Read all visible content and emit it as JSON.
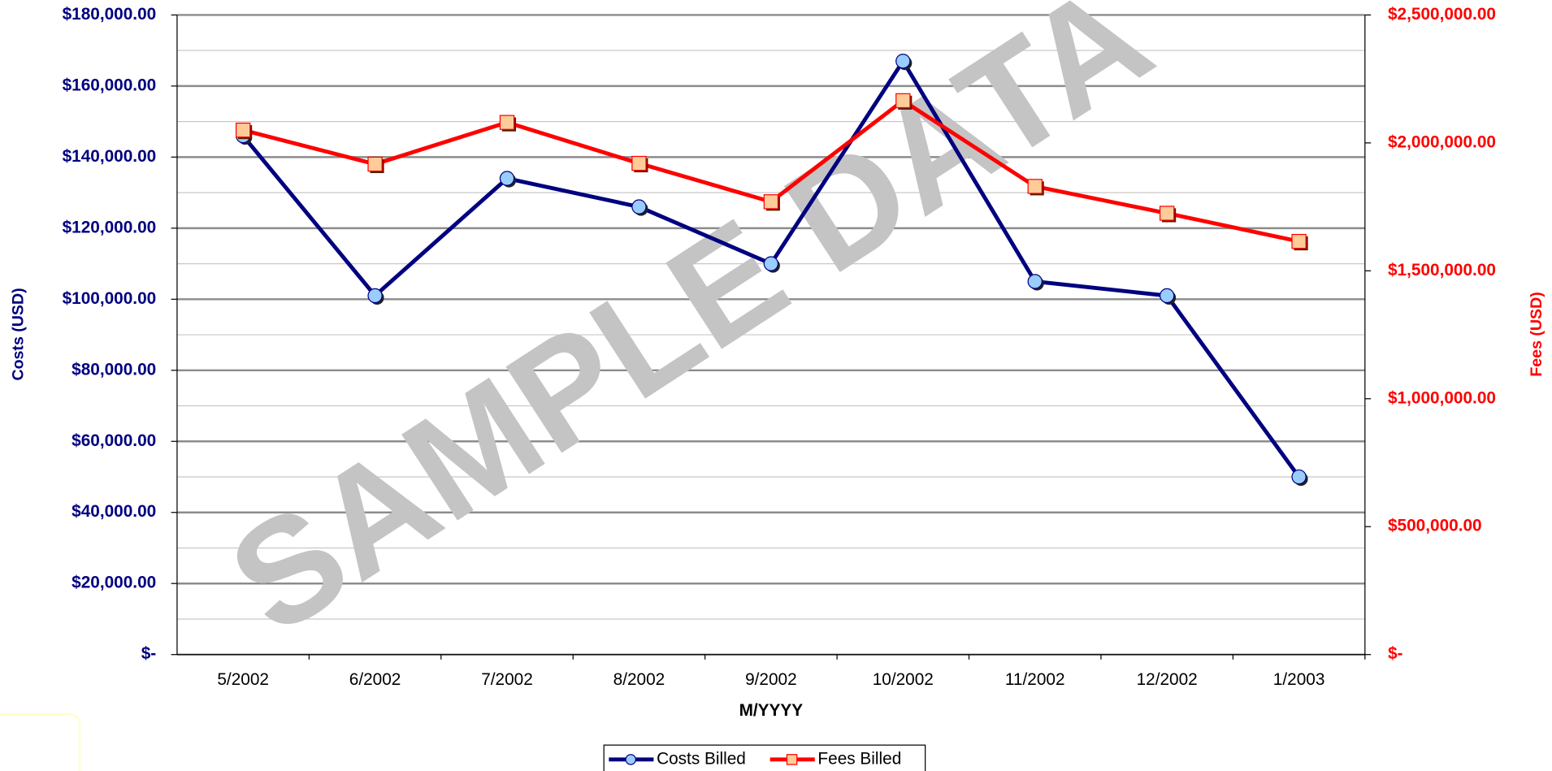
{
  "chart_data": {
    "type": "line",
    "watermark": "SAMPLE DATA",
    "x_label": "M/YYYY",
    "y_label": "Costs (USD)",
    "y2_label": "Fees (USD)",
    "categories": [
      "5/2002",
      "6/2002",
      "7/2002",
      "8/2002",
      "9/2002",
      "10/2002",
      "11/2002",
      "12/2002",
      "1/2003"
    ],
    "series": [
      {
        "name": "Costs Billed",
        "color": "#000080",
        "marker_color": "#99ccff",
        "marker": "circle",
        "values": [
          146000,
          101000,
          134000,
          126000,
          110000,
          167000,
          105000,
          101000,
          50000
        ]
      },
      {
        "name": "Fees Billed",
        "color": "#ff0000",
        "marker_color": "#ffcc99",
        "marker": "square",
        "axis": "y2",
        "values": [
          2050000,
          1917000,
          2080000,
          1920000,
          1770000,
          2165000,
          1830000,
          1725000,
          1615000
        ]
      }
    ],
    "ylim": [
      0,
      180000
    ],
    "yticks": [
      {
        "value": 0,
        "label": "$-"
      },
      {
        "value": 20000,
        "label": "$20,000.00"
      },
      {
        "value": 40000,
        "label": "$40,000.00"
      },
      {
        "value": 60000,
        "label": "$60,000.00"
      },
      {
        "value": 80000,
        "label": "$80,000.00"
      },
      {
        "value": 100000,
        "label": "$100,000.00"
      },
      {
        "value": 120000,
        "label": "$120,000.00"
      },
      {
        "value": 140000,
        "label": "$140,000.00"
      },
      {
        "value": 160000,
        "label": "$160,000.00"
      },
      {
        "value": 180000,
        "label": "$180,000.00"
      }
    ],
    "y2lim": [
      0,
      2500000
    ],
    "y2ticks": [
      {
        "value": 0,
        "label": "$-"
      },
      {
        "value": 500000,
        "label": "$500,000.00"
      },
      {
        "value": 1000000,
        "label": "$1,000,000.00"
      },
      {
        "value": 1500000,
        "label": "$1,500,000.00"
      },
      {
        "value": 2000000,
        "label": "$2,000,000.00"
      },
      {
        "value": 2500000,
        "label": "$2,500,000.00"
      }
    ],
    "grid": true,
    "legend": "bottom"
  }
}
